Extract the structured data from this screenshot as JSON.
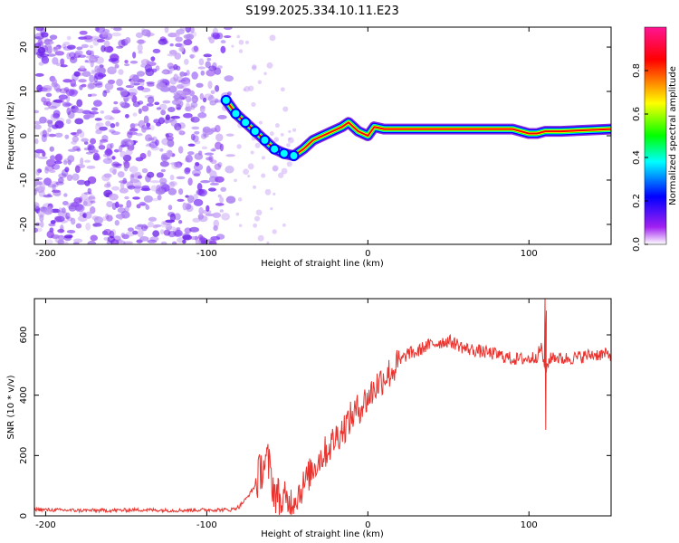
{
  "title": "S199.2025.334.10.11.E23",
  "chart_data": [
    {
      "type": "heatmap",
      "xlabel": "Height of straight line (km)",
      "ylabel": "Frequency (Hz)",
      "xlim": [
        -207,
        151
      ],
      "ylim": [
        -24.5,
        24.5
      ],
      "xticks": [
        -200,
        -100,
        0,
        100
      ],
      "yticks": [
        -20,
        -10,
        0,
        10,
        20
      ],
      "colorbar": {
        "label": "Normalized spectral amplitude",
        "range": [
          0,
          1
        ],
        "ticks": [
          0.0,
          0.2,
          0.4,
          0.6,
          0.8
        ],
        "colors": [
          "#ffffff",
          "#8a2be2",
          "#0000ff",
          "#00ffff",
          "#00ff00",
          "#ffff00",
          "#ff0000",
          "#ff1493"
        ]
      },
      "ridge": {
        "x": [
          -88,
          -82,
          -76,
          -70,
          -64,
          -58,
          -52,
          -46,
          -40,
          -34,
          -28,
          -22,
          -16,
          -12,
          -6,
          0,
          4,
          10,
          30,
          60,
          90,
          100,
          105,
          110,
          120,
          151
        ],
        "y": [
          8,
          5,
          3,
          1,
          -1,
          -3,
          -4,
          -4.5,
          -3,
          -1,
          0,
          1,
          2,
          3,
          1,
          0,
          2,
          1.5,
          1.5,
          1.5,
          1.5,
          0.5,
          0.5,
          1,
          1,
          1.5
        ]
      }
    },
    {
      "type": "line",
      "xlabel": "Height of straight line (km)",
      "ylabel": "SNR (10 * v/v)",
      "xlim": [
        -207,
        151
      ],
      "ylim": [
        0,
        720
      ],
      "xticks": [
        -200,
        -100,
        0,
        100
      ],
      "yticks": [
        0,
        200,
        400,
        600
      ],
      "color": "#e8332e",
      "series": [
        {
          "name": "SNR",
          "x": [
            -207,
            -200,
            -180,
            -160,
            -140,
            -120,
            -100,
            -85,
            -80,
            -75,
            -70,
            -65,
            -62,
            -58,
            -55,
            -50,
            -45,
            -40,
            -35,
            -30,
            -25,
            -20,
            -15,
            -10,
            -5,
            0,
            5,
            10,
            15,
            20,
            25,
            30,
            35,
            40,
            45,
            50,
            55,
            60,
            65,
            70,
            75,
            80,
            90,
            100,
            105,
            108,
            110,
            112,
            115,
            120,
            130,
            140,
            151
          ],
          "y": [
            22,
            20,
            18,
            18,
            20,
            18,
            20,
            20,
            30,
            60,
            100,
            170,
            180,
            80,
            60,
            40,
            60,
            100,
            150,
            190,
            220,
            260,
            290,
            330,
            360,
            390,
            430,
            460,
            480,
            510,
            540,
            540,
            560,
            570,
            575,
            580,
            570,
            555,
            550,
            545,
            540,
            535,
            520,
            520,
            530,
            560,
            470,
            510,
            530,
            520,
            525,
            535,
            535
          ]
        }
      ],
      "annotations": [
        {
          "x": 110,
          "y_min": 285,
          "y_max": 720,
          "note": "spike"
        }
      ]
    }
  ]
}
